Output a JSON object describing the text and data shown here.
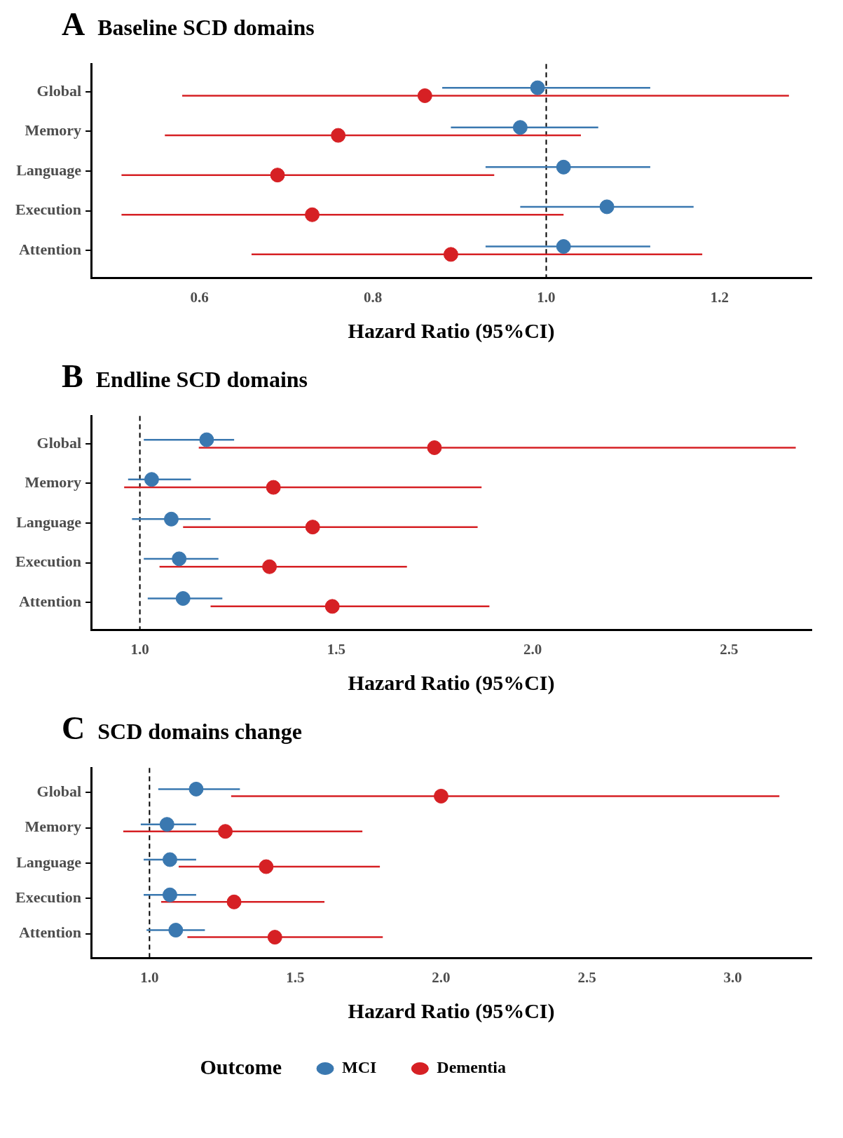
{
  "chart_data": [
    {
      "type": "scatter",
      "orientation": "horizontal",
      "title": "Baseline SCD domains",
      "annotations": [
        "A"
      ],
      "xlabel": "Hazard Ratio (95%CI)",
      "categories": [
        "Global",
        "Memory",
        "Language",
        "Execution",
        "Attention"
      ],
      "xlim": [
        0.475,
        1.306
      ],
      "xticks": [
        {
          "value": 0.6,
          "label": "0.6"
        },
        {
          "value": 0.8,
          "label": "0.8"
        },
        {
          "value": 1,
          "label": "1.0"
        },
        {
          "value": 1.2,
          "label": "1.2"
        }
      ],
      "grid": false,
      "marker": "circle",
      "ref_lines": [
        {
          "axis": "x",
          "value": 1,
          "line_style": "dashed",
          "color": "#000000"
        }
      ],
      "series": [
        {
          "color": "#3a78b0",
          "values": [
            0.99,
            0.97,
            1.02,
            1.07,
            1.02
          ],
          "errors": [
            [
              0.88,
              1.12
            ],
            [
              0.89,
              1.06
            ],
            [
              0.93,
              1.12
            ],
            [
              0.97,
              1.17
            ],
            [
              0.93,
              1.12
            ]
          ]
        },
        {
          "color": "#d62024",
          "values": [
            0.86,
            0.76,
            0.69,
            0.73,
            0.89
          ],
          "errors": [
            [
              0.58,
              1.28
            ],
            [
              0.56,
              1.04
            ],
            [
              0.51,
              0.94
            ],
            [
              0.51,
              1.02
            ],
            [
              0.66,
              1.18
            ]
          ]
        }
      ]
    },
    {
      "type": "scatter",
      "orientation": "horizontal",
      "title": "Endline SCD domains",
      "annotations": [
        "B"
      ],
      "xlabel": "Hazard Ratio (95%CI)",
      "categories": [
        "Global",
        "Memory",
        "Language",
        "Execution",
        "Attention"
      ],
      "xlim": [
        0.876,
        2.71
      ],
      "xticks": [
        {
          "value": 1,
          "label": "1.0"
        },
        {
          "value": 1.5,
          "label": "1.5"
        },
        {
          "value": 2,
          "label": "2.0"
        },
        {
          "value": 2.5,
          "label": "2.5"
        }
      ],
      "grid": false,
      "marker": "circle",
      "ref_lines": [
        {
          "axis": "x",
          "value": 1,
          "line_style": "dashed",
          "color": "#000000"
        }
      ],
      "series": [
        {
          "color": "#3a78b0",
          "values": [
            1.17,
            1.03,
            1.08,
            1.1,
            1.11
          ],
          "errors": [
            [
              1.01,
              1.24
            ],
            [
              0.97,
              1.13
            ],
            [
              0.98,
              1.18
            ],
            [
              1.01,
              1.2
            ],
            [
              1.02,
              1.21
            ]
          ]
        },
        {
          "color": "#d62024",
          "values": [
            1.75,
            1.34,
            1.44,
            1.33,
            1.49
          ],
          "errors": [
            [
              1.15,
              2.67
            ],
            [
              0.96,
              1.87
            ],
            [
              1.11,
              1.86
            ],
            [
              1.05,
              1.68
            ],
            [
              1.18,
              1.89
            ]
          ]
        }
      ]
    },
    {
      "type": "scatter",
      "orientation": "horizontal",
      "title": "SCD domains change",
      "annotations": [
        "C"
      ],
      "xlabel": "Hazard Ratio (95%CI)",
      "categories": [
        "Global",
        "Memory",
        "Language",
        "Execution",
        "Attention"
      ],
      "xlim": [
        0.8,
        3.27
      ],
      "xticks": [
        {
          "value": 1,
          "label": "1.0"
        },
        {
          "value": 1.5,
          "label": "1.5"
        },
        {
          "value": 2,
          "label": "2.0"
        },
        {
          "value": 2.5,
          "label": "2.5"
        },
        {
          "value": 3,
          "label": "3.0"
        }
      ],
      "grid": false,
      "marker": "circle",
      "legend": "bottom",
      "legend_title": "Outcome",
      "ref_lines": [
        {
          "axis": "x",
          "value": 1,
          "line_style": "dashed",
          "color": "#000000"
        }
      ],
      "series": [
        {
          "name": "MCI",
          "color": "#3a78b0",
          "values": [
            1.16,
            1.06,
            1.07,
            1.07,
            1.09
          ],
          "errors": [
            [
              1.03,
              1.31
            ],
            [
              0.97,
              1.16
            ],
            [
              0.98,
              1.16
            ],
            [
              0.98,
              1.16
            ],
            [
              0.99,
              1.19
            ]
          ]
        },
        {
          "name": "Dementia",
          "color": "#d62024",
          "values": [
            2.0,
            1.26,
            1.4,
            1.29,
            1.43
          ],
          "errors": [
            [
              1.28,
              3.16
            ],
            [
              0.91,
              1.73
            ],
            [
              1.1,
              1.79
            ],
            [
              1.04,
              1.6
            ],
            [
              1.13,
              1.8
            ]
          ]
        }
      ]
    }
  ]
}
